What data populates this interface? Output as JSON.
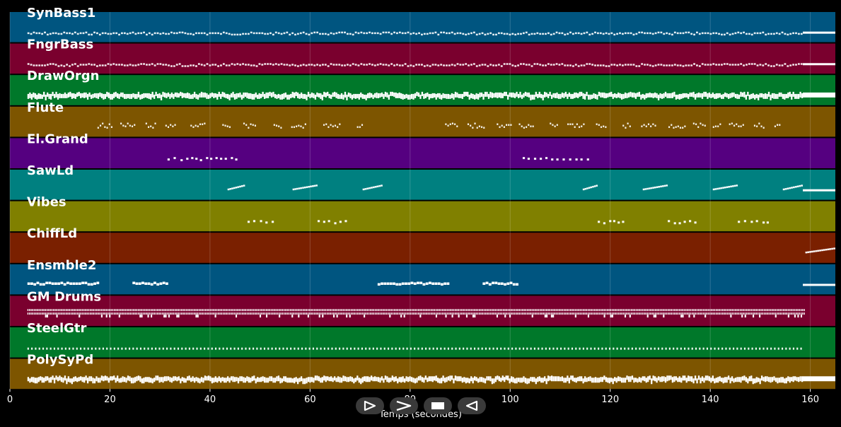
{
  "chart_data": {
    "type": "piano-roll",
    "xlabel": "Temps (secondes)",
    "xlim": [
      0,
      165
    ],
    "xticks": [
      0,
      20,
      40,
      60,
      80,
      100,
      120,
      140,
      160
    ],
    "grid": true,
    "tracks": [
      {
        "name": "SynBass1",
        "color": "#005580",
        "pattern": "dense_thin",
        "spans": [
          [
            3.5,
            158.5
          ]
        ],
        "tail": [
          158.5,
          165
        ]
      },
      {
        "name": "FngrBass",
        "color": "#7a002e",
        "pattern": "dense_thin",
        "spans": [
          [
            3.5,
            158.5
          ]
        ],
        "tail": [
          158.5,
          165
        ]
      },
      {
        "name": "DrawOrgn",
        "color": "#00782a",
        "pattern": "dense_thick",
        "spans": [
          [
            3.5,
            158.5
          ]
        ],
        "tail": [
          158.5,
          165
        ]
      },
      {
        "name": "Flute",
        "color": "#7d5500",
        "pattern": "phrases",
        "spans": [
          [
            17.5,
            70.5
          ],
          [
            87,
            154
          ]
        ]
      },
      {
        "name": "El.Grand",
        "color": "#550080",
        "pattern": "sparse",
        "spans": [
          [
            31.5,
            46
          ],
          [
            102.5,
            115.5
          ]
        ]
      },
      {
        "name": "SawLd",
        "color": "#008080",
        "pattern": "runs",
        "spans": [
          [
            43.5,
            47
          ],
          [
            56.5,
            61.5
          ],
          [
            70.5,
            74.5
          ],
          [
            114.5,
            117.5
          ],
          [
            126.5,
            131.5
          ],
          [
            140.5,
            145.5
          ],
          [
            154.5,
            158.5
          ]
        ],
        "tail": [
          158.5,
          165
        ]
      },
      {
        "name": "Vibes",
        "color": "#808000",
        "pattern": "sparse",
        "spans": [
          [
            47.5,
            53
          ],
          [
            61.5,
            67
          ],
          [
            117.5,
            123.5
          ],
          [
            131.5,
            137.5
          ],
          [
            145.5,
            151.5
          ]
        ]
      },
      {
        "name": "ChiffLd",
        "color": "#7a2000",
        "pattern": "runs",
        "spans": [
          [
            159,
            165
          ]
        ]
      },
      {
        "name": "Ensmble2",
        "color": "#005580",
        "pattern": "blocks",
        "spans": [
          [
            3.5,
            17.5
          ],
          [
            24.5,
            31.5
          ],
          [
            73.5,
            87.5
          ],
          [
            94.5,
            101.5
          ]
        ],
        "tail": [
          158.5,
          165
        ]
      },
      {
        "name": "GM Drums",
        "color": "#7a002e",
        "pattern": "drums",
        "spans": [
          [
            3.5,
            159
          ]
        ]
      },
      {
        "name": "SteelGtr",
        "color": "#00782a",
        "pattern": "dotted",
        "spans": [
          [
            3.5,
            158.5
          ]
        ]
      },
      {
        "name": "PolySyPd",
        "color": "#7d5500",
        "pattern": "dense_thick",
        "spans": [
          [
            3.5,
            158.5
          ]
        ],
        "tail": [
          158.5,
          165
        ]
      }
    ]
  },
  "controls": {
    "play_label": "Play",
    "forward_label": "Forward",
    "stop_label": "Stop",
    "rewind_label": "Rewind",
    "button_bg": "#3a3a3a"
  }
}
